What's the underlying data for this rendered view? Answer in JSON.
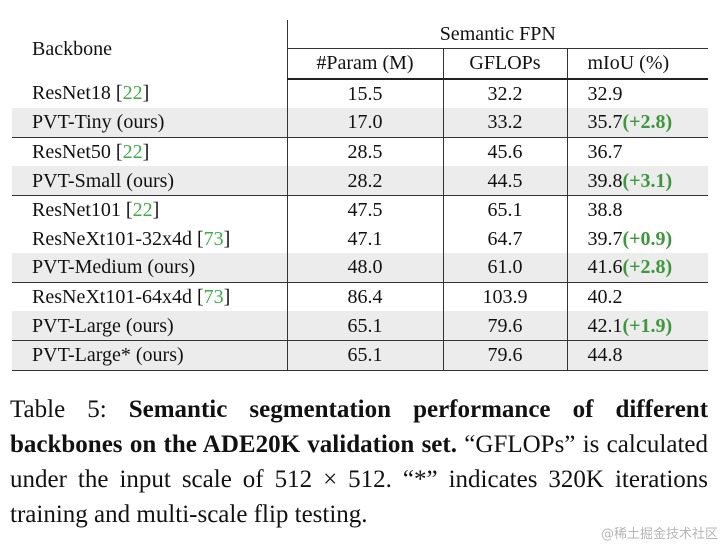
{
  "table": {
    "header": {
      "backbone": "Backbone",
      "group": "Semantic FPN",
      "columns": [
        "#Param (M)",
        "GFLOPs",
        "mIoU (%)"
      ]
    },
    "rows": [
      {
        "backbone": "ResNet18",
        "cite": "[22]",
        "param": "15.5",
        "gflops": "32.2",
        "miou": "32.9"
      },
      {
        "backbone": "PVT-Tiny (ours)",
        "param": "17.0",
        "gflops": "33.2",
        "miou": "35.7",
        "gain": "(+2.8)"
      },
      {
        "backbone": "ResNet50",
        "cite": "[22]",
        "param": "28.5",
        "gflops": "45.6",
        "miou": "36.7"
      },
      {
        "backbone": "PVT-Small (ours)",
        "param": "28.2",
        "gflops": "44.5",
        "miou": "39.8",
        "gain": "(+3.1)"
      },
      {
        "backbone": "ResNet101",
        "cite": "[22]",
        "param": "47.5",
        "gflops": "65.1",
        "miou": "38.8"
      },
      {
        "backbone": "ResNeXt101-32x4d",
        "cite": "[73]",
        "param": "47.1",
        "gflops": "64.7",
        "miou": "39.7",
        "gain": "(+0.9)"
      },
      {
        "backbone": "PVT-Medium (ours)",
        "param": "48.0",
        "gflops": "61.0",
        "miou": "41.6",
        "gain": "(+2.8)"
      },
      {
        "backbone": "ResNeXt101-64x4d",
        "cite": "[73]",
        "param": "86.4",
        "gflops": "103.9",
        "miou": "40.2"
      },
      {
        "backbone": "PVT-Large (ours)",
        "param": "65.1",
        "gflops": "79.6",
        "miou": "42.1",
        "gain": "(+1.9)"
      },
      {
        "backbone": "PVT-Large* (ours)",
        "param": "65.1",
        "gflops": "79.6",
        "miou": "44.8"
      }
    ]
  },
  "caption": {
    "label": "Table 5:",
    "bold": "Semantic segmentation performance of different backbones on the ADE20K validation set.",
    "text": "“GFLOPs” is calculated under the input scale of 512 × 512. “*” indicates 320K iterations training and multi-scale flip testing."
  },
  "watermark": "@稀土掘金技术社区"
}
